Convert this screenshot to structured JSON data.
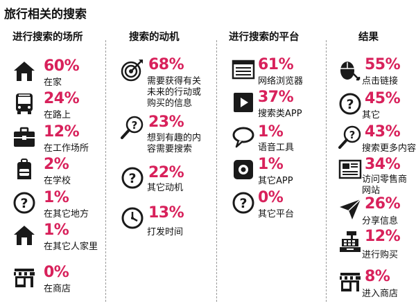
{
  "title": "旅行相关的搜索",
  "columns": [
    {
      "header": "进行搜索的场所",
      "items": [
        {
          "percent": "60%",
          "label": [
            "在家"
          ],
          "icon": "house-icon"
        },
        {
          "percent": "24%",
          "label": [
            "在路上"
          ],
          "icon": "bus-icon"
        },
        {
          "percent": "12%",
          "label": [
            "在工作场所"
          ],
          "icon": "briefcase-icon"
        },
        {
          "percent": "2%",
          "label": [
            "在学校"
          ],
          "icon": "backpack-icon"
        },
        {
          "percent": "1%",
          "label": [
            "在其它地方"
          ],
          "icon": "question-icon"
        },
        {
          "percent": "1%",
          "label": [
            "在其它人家里"
          ],
          "icon": "house-icon"
        },
        {
          "percent": "0%",
          "label": [
            "在商店"
          ],
          "icon": "store-icon"
        }
      ]
    },
    {
      "header": "搜索的动机",
      "items": [
        {
          "percent": "68%",
          "label": [
            "需要获得有关",
            "未来的行动或",
            "购买的信息"
          ],
          "icon": "target-icon"
        },
        {
          "percent": "23%",
          "label": [
            "想到有趣的内",
            "容需要搜索"
          ],
          "icon": "magnifier-question-icon"
        },
        {
          "percent": "22%",
          "label": [
            "其它动机"
          ],
          "icon": "question-icon"
        },
        {
          "percent": "13%",
          "label": [
            "打发时间"
          ],
          "icon": "clock-icon"
        }
      ]
    },
    {
      "header": "进行搜索的平台",
      "items": [
        {
          "percent": "61%",
          "label": [
            "网络浏览器"
          ],
          "icon": "browser-icon"
        },
        {
          "percent": "37%",
          "label": [
            "搜索类APP"
          ],
          "icon": "play-icon"
        },
        {
          "percent": "1%",
          "label": [
            "语音工具"
          ],
          "icon": "speech-bubble-icon"
        },
        {
          "percent": "1%",
          "label": [
            "其它APP"
          ],
          "icon": "app-icon"
        },
        {
          "percent": "0%",
          "label": [
            "其它平台"
          ],
          "icon": "question-icon"
        }
      ]
    },
    {
      "header": "结果",
      "items": [
        {
          "percent": "55%",
          "label": [
            "点击链接"
          ],
          "icon": "mouse-icon"
        },
        {
          "percent": "45%",
          "label": [
            "其它"
          ],
          "icon": "question-icon"
        },
        {
          "percent": "43%",
          "label": [
            "搜索更多内容"
          ],
          "icon": "magnifier-question-icon"
        },
        {
          "percent": "34%",
          "label": [
            "访问零售商",
            "网站"
          ],
          "icon": "newspaper-icon"
        },
        {
          "percent": "26%",
          "label": [
            "分享信息"
          ],
          "icon": "paper-plane-icon"
        },
        {
          "percent": "12%",
          "label": [
            "进行购买"
          ],
          "icon": "cash-register-icon"
        },
        {
          "percent": "8%",
          "label": [
            "进入商店"
          ],
          "icon": "store-icon"
        }
      ]
    }
  ]
}
